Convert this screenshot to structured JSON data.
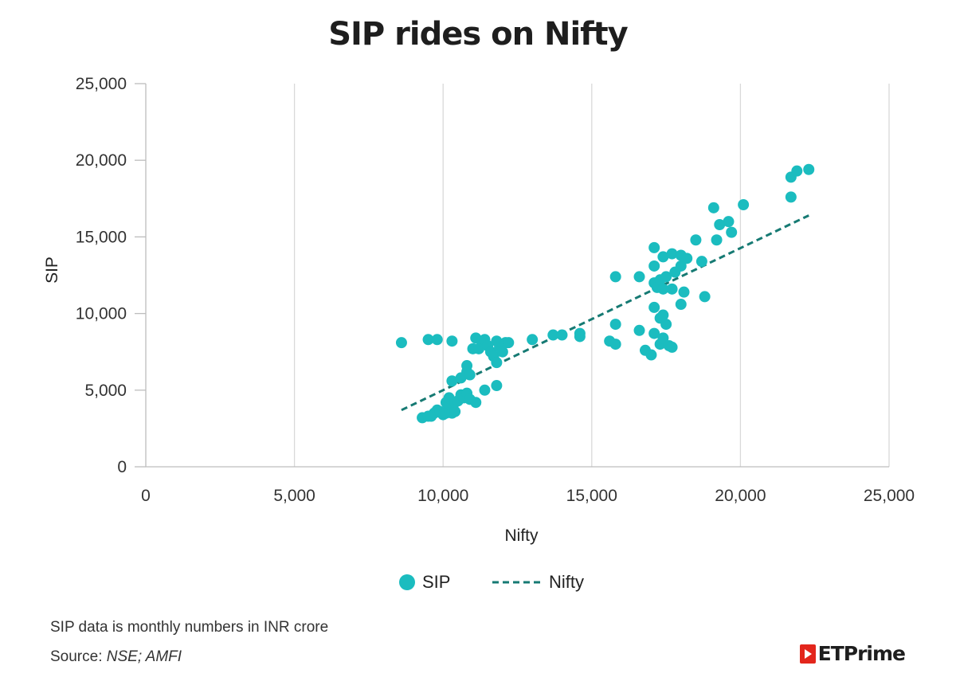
{
  "chart_data": {
    "type": "scatter",
    "title": "SIP rides on Nifty",
    "xlabel": "Nifty",
    "ylabel": "SIP",
    "xlim": [
      0,
      25000
    ],
    "ylim": [
      0,
      25000
    ],
    "xticks": [
      0,
      5000,
      10000,
      15000,
      20000,
      25000
    ],
    "yticks": [
      0,
      5000,
      10000,
      15000,
      20000,
      25000
    ],
    "xtick_labels": [
      "0",
      "5,000",
      "10,000",
      "15,000",
      "20,000",
      "25,000"
    ],
    "ytick_labels": [
      "0",
      "5,000",
      "10,000",
      "15,000",
      "20,000",
      "25,000"
    ],
    "grid": "vertical",
    "legend_position": "bottom-center",
    "legend": [
      {
        "label": "SIP",
        "kind": "marker"
      },
      {
        "label": "Nifty",
        "kind": "dashed-line"
      }
    ],
    "series": [
      {
        "name": "SIP",
        "color": "#1bbcbf",
        "points": [
          [
            8600,
            8100
          ],
          [
            9500,
            8300
          ],
          [
            9800,
            8300
          ],
          [
            10300,
            8200
          ],
          [
            9300,
            3200
          ],
          [
            9500,
            3300
          ],
          [
            9600,
            3300
          ],
          [
            9700,
            3500
          ],
          [
            9800,
            3700
          ],
          [
            9900,
            3600
          ],
          [
            10000,
            3400
          ],
          [
            10100,
            3500
          ],
          [
            10200,
            3800
          ],
          [
            10300,
            3500
          ],
          [
            10400,
            3600
          ],
          [
            10100,
            4200
          ],
          [
            10200,
            4500
          ],
          [
            10400,
            4200
          ],
          [
            10500,
            4300
          ],
          [
            10600,
            4700
          ],
          [
            10700,
            4500
          ],
          [
            10800,
            4800
          ],
          [
            10900,
            4400
          ],
          [
            11100,
            4200
          ],
          [
            10300,
            5600
          ],
          [
            10600,
            5800
          ],
          [
            10800,
            6200
          ],
          [
            10800,
            6600
          ],
          [
            10900,
            6000
          ],
          [
            11000,
            7700
          ],
          [
            11100,
            8400
          ],
          [
            11200,
            7700
          ],
          [
            11300,
            8200
          ],
          [
            11400,
            8300
          ],
          [
            11500,
            7900
          ],
          [
            11600,
            7500
          ],
          [
            11700,
            7200
          ],
          [
            11800,
            6800
          ],
          [
            11800,
            8200
          ],
          [
            11900,
            7800
          ],
          [
            12000,
            7500
          ],
          [
            12100,
            8100
          ],
          [
            12200,
            8100
          ],
          [
            11400,
            5000
          ],
          [
            11800,
            5300
          ],
          [
            13000,
            8300
          ],
          [
            13700,
            8600
          ],
          [
            14000,
            8600
          ],
          [
            14600,
            8700
          ],
          [
            14600,
            8500
          ],
          [
            15600,
            8200
          ],
          [
            15800,
            8000
          ],
          [
            15800,
            9300
          ],
          [
            15800,
            12400
          ],
          [
            16600,
            12400
          ],
          [
            16600,
            8900
          ],
          [
            16800,
            7600
          ],
          [
            17000,
            7300
          ],
          [
            17100,
            10400
          ],
          [
            17100,
            8700
          ],
          [
            17100,
            12000
          ],
          [
            17100,
            13100
          ],
          [
            17100,
            14300
          ],
          [
            17200,
            11700
          ],
          [
            17300,
            9700
          ],
          [
            17300,
            8000
          ],
          [
            17300,
            12200
          ],
          [
            17400,
            13700
          ],
          [
            17400,
            9900
          ],
          [
            17400,
            8400
          ],
          [
            17400,
            11600
          ],
          [
            17500,
            12400
          ],
          [
            17500,
            9300
          ],
          [
            17600,
            7900
          ],
          [
            17700,
            7800
          ],
          [
            17700,
            11600
          ],
          [
            17700,
            13900
          ],
          [
            17800,
            12700
          ],
          [
            18000,
            10600
          ],
          [
            18000,
            13100
          ],
          [
            18000,
            13800
          ],
          [
            18100,
            11400
          ],
          [
            18200,
            13600
          ],
          [
            18500,
            14800
          ],
          [
            18700,
            13400
          ],
          [
            18800,
            11100
          ],
          [
            19100,
            16900
          ],
          [
            19200,
            14800
          ],
          [
            19300,
            15800
          ],
          [
            19600,
            16000
          ],
          [
            19700,
            15300
          ],
          [
            20100,
            17100
          ],
          [
            21700,
            17600
          ],
          [
            21700,
            18900
          ],
          [
            21900,
            19300
          ],
          [
            22300,
            19400
          ]
        ]
      },
      {
        "name": "Nifty",
        "kind": "trendline",
        "color": "#167a73",
        "points": [
          [
            8600,
            3700
          ],
          [
            22300,
            16400
          ]
        ]
      }
    ]
  },
  "notes": {
    "line1": "SIP data is monthly numbers in INR crore",
    "source_label": "Source:",
    "source_value": "NSE; AMFI"
  },
  "brand": {
    "name": "ETPrime",
    "mark_color": "#e3261c"
  }
}
